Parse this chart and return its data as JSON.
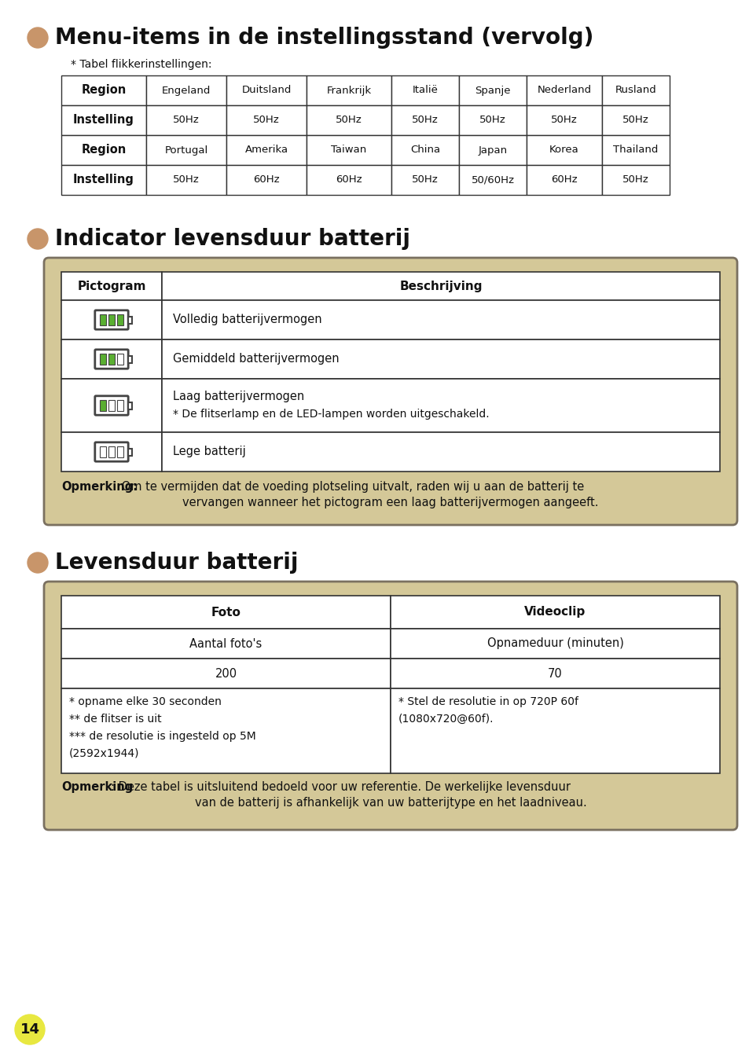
{
  "background_color": "#ffffff",
  "page_number": "14",
  "page_number_bg": "#e8e840",
  "bullet_color": "#c8956a",
  "section1_title": "Menu-items in de instellingsstand (vervolg)",
  "section1_subtitle": "* Tabel flikkerinstellingen:",
  "table1_headers": [
    "Region",
    "Engeland",
    "Duitsland",
    "Frankrijk",
    "Italië",
    "Spanje",
    "Nederland",
    "Rusland"
  ],
  "table1_row2": [
    "Instelling",
    "50Hz",
    "50Hz",
    "50Hz",
    "50Hz",
    "50Hz",
    "50Hz",
    "50Hz"
  ],
  "table1_row3": [
    "Region",
    "Portugal",
    "Amerika",
    "Taiwan",
    "China",
    "Japan",
    "Korea",
    "Thailand"
  ],
  "table1_row4": [
    "Instelling",
    "50Hz",
    "60Hz",
    "60Hz",
    "50Hz",
    "50/60Hz",
    "60Hz",
    "50Hz"
  ],
  "section2_title": "Indicator levensduur batterij",
  "box1_bg": "#d4c898",
  "box1_table_headers": [
    "Pictogram",
    "Beschrijving"
  ],
  "descriptions": [
    "Volledig batterijvermogen",
    "Gemiddeld batterijvermogen",
    "Laag batterijvermogen",
    "* De flitserlamp en de LED-lampen worden uitgeschakeld.",
    "Lege batterij"
  ],
  "box1_note_bold": "Opmerking:",
  "box1_note_rest": " Om te vermijden dat de voeding plotseling uitvalt, raden wij u aan de batterij te",
  "box1_note_line2": "vervangen wanneer het pictogram een laag batterijvermogen aangeeft.",
  "section3_title": "Levensduur batterij",
  "box2_bg": "#d4c898",
  "box2_table_headers": [
    "Foto",
    "Videoclip"
  ],
  "box2_row1": [
    "Aantal foto's",
    "Opnameduur (minuten)"
  ],
  "box2_row2": [
    "200",
    "70"
  ],
  "box2_row3_left_lines": [
    "* opname elke 30 seconden",
    "** de flitser is uit",
    "*** de resolutie is ingesteld op 5M",
    "(2592x1944)"
  ],
  "box2_row3_right_lines": [
    "* Stel de resolutie in op 720P 60f",
    "(1080x720@60f)."
  ],
  "box2_note_bold": "Opmerking",
  "box2_note_rest": ": Deze tabel is uitsluitend bedoeld voor uw referentie. De werkelijke levensduur",
  "box2_note_line2": "van de batterij is afhankelijk van uw batterijtype en het laadniveau.",
  "battery_green": "#5aaf32",
  "battery_outline": "#444444",
  "text_color": "#1a1a1a",
  "table_border": "#333333"
}
